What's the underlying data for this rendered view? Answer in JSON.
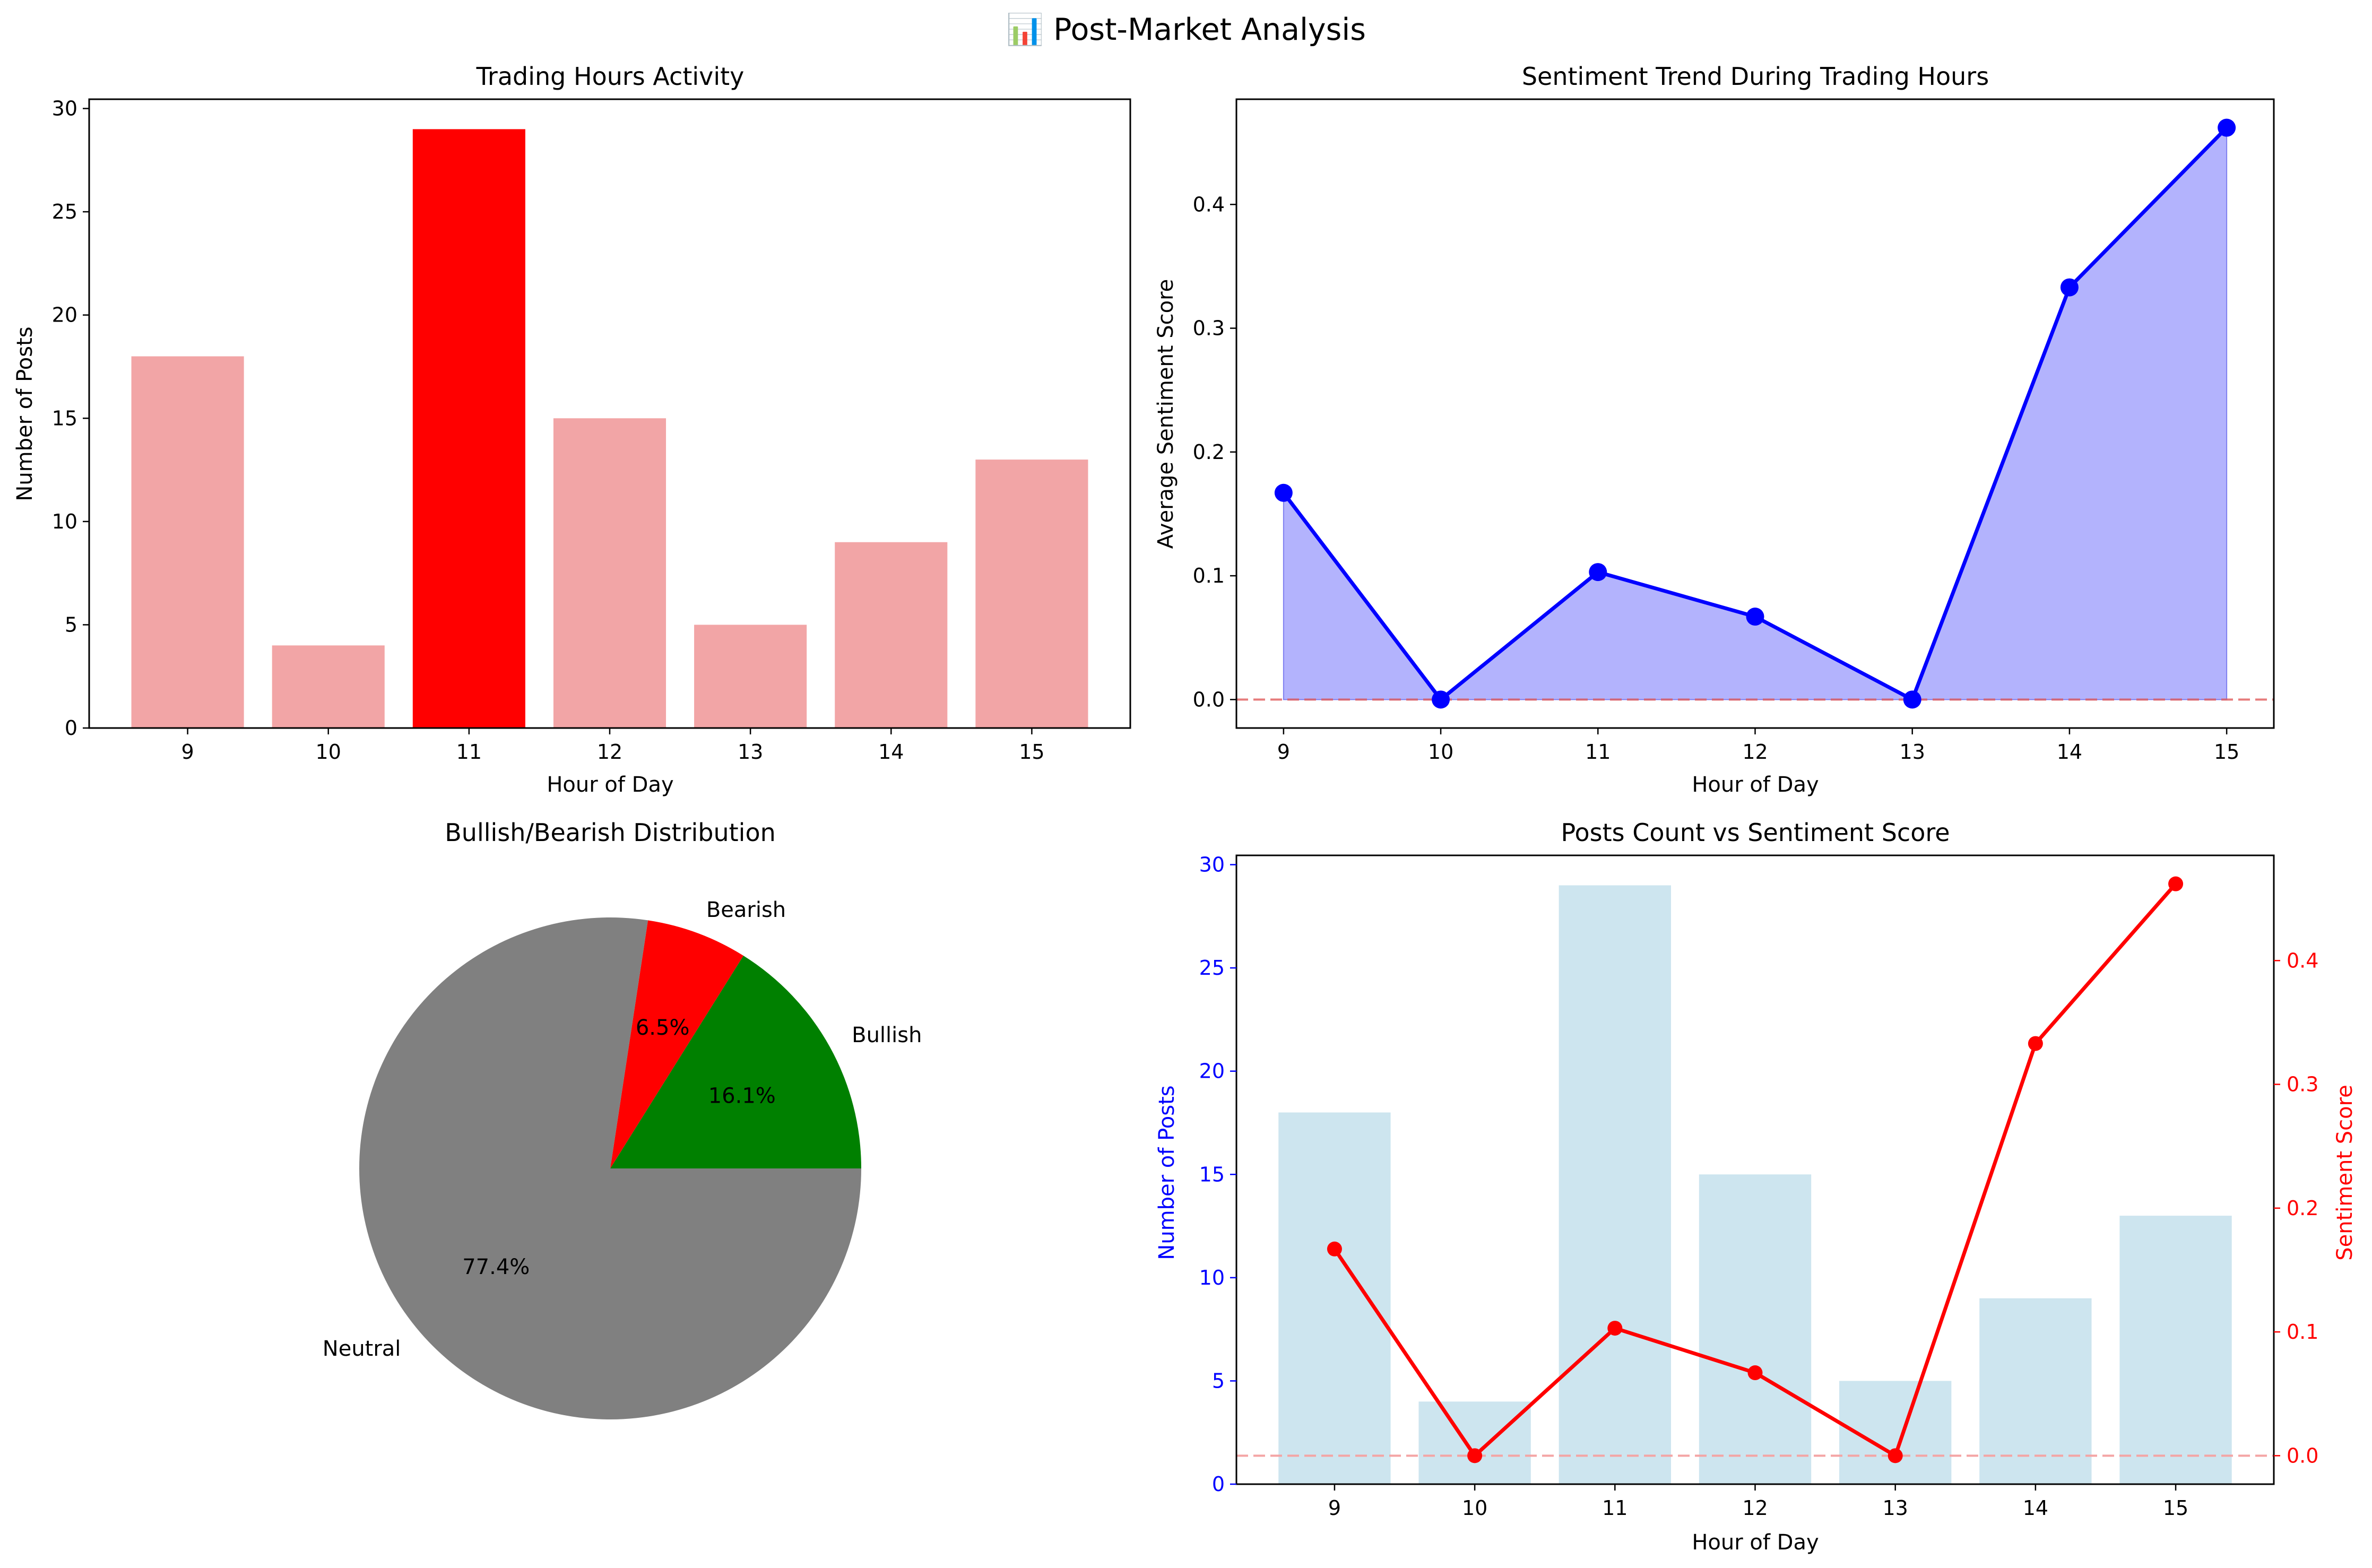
{
  "figure_title": "📊 Post-Market Analysis",
  "chart_data": [
    {
      "type": "bar",
      "title": "Trading Hours Activity",
      "xlabel": "Hour of Day",
      "ylabel": "Number of Posts",
      "categories": [
        "9",
        "10",
        "11",
        "12",
        "13",
        "14",
        "15"
      ],
      "values": [
        18,
        4,
        29,
        15,
        5,
        9,
        13
      ],
      "ylim": [
        0,
        30.45
      ],
      "yticks": [
        0,
        5,
        10,
        15,
        20,
        25,
        30
      ],
      "colors": {
        "default": "#f2a5a6",
        "highlight": "#ff0000"
      },
      "highlight_category": "11"
    },
    {
      "type": "area",
      "title": "Sentiment Trend During Trading Hours",
      "xlabel": "Hour of Day",
      "ylabel": "Average Sentiment Score",
      "x": [
        9,
        10,
        11,
        12,
        13,
        14,
        15
      ],
      "xticks": [
        9,
        10,
        11,
        12,
        13,
        14,
        15
      ],
      "values": [
        0.167,
        0.0,
        0.103,
        0.067,
        0.0,
        0.333,
        0.462
      ],
      "xlim": [
        8.7,
        15.3
      ],
      "ylim": [
        -0.023,
        0.485
      ],
      "yticks": [
        0.0,
        0.1,
        0.2,
        0.3,
        0.4
      ],
      "ytick_labels": [
        "0.0",
        "0.1",
        "0.2",
        "0.3",
        "0.4"
      ],
      "reference_line": 0,
      "colors": {
        "line": "#0000ff",
        "fill": "#b3b3fd",
        "reference": "#e05c5c"
      }
    },
    {
      "type": "pie",
      "title": "Bullish/Bearish Distribution",
      "slices": [
        {
          "label": "Bullish",
          "value": 16.1,
          "pct_label": "16.1%",
          "color": "#008000"
        },
        {
          "label": "Bearish",
          "value": 6.5,
          "pct_label": "6.5%",
          "color": "#ff0000"
        },
        {
          "label": "Neutral",
          "value": 77.4,
          "pct_label": "77.4%",
          "color": "#808080"
        }
      ]
    },
    {
      "type": "bar+line",
      "title": "Posts Count vs Sentiment Score",
      "xlabel": "Hour of Day",
      "ylabel": "Number of Posts",
      "y2label": "Sentiment Score",
      "categories": [
        "9",
        "10",
        "11",
        "12",
        "13",
        "14",
        "15"
      ],
      "bar_values": [
        18,
        4,
        29,
        15,
        5,
        9,
        13
      ],
      "line_values": [
        0.167,
        0.0,
        0.103,
        0.067,
        0.0,
        0.333,
        0.462
      ],
      "ylim": [
        0,
        30.45
      ],
      "yticks": [
        0,
        5,
        10,
        15,
        20,
        25,
        30
      ],
      "y2lim": [
        -0.023,
        0.485
      ],
      "y2ticks": [
        0.0,
        0.1,
        0.2,
        0.3,
        0.4
      ],
      "y2tick_labels": [
        "0.0",
        "0.1",
        "0.2",
        "0.3",
        "0.4"
      ],
      "reference_line": 0,
      "colors": {
        "bar": "#cde5ef",
        "line": "#ff0000",
        "left_axis": "#0000ff",
        "right_axis": "#ff0000",
        "reference": "#f4a4a4"
      }
    }
  ]
}
